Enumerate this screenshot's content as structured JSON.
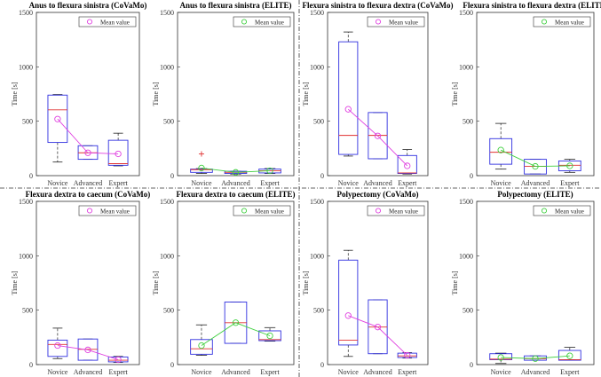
{
  "chart_data": [
    {
      "type": "box",
      "title": "Anus to flexura sinistra (CoVaMo)",
      "ylabel": "Time [s]",
      "ylim": [
        0,
        1500
      ],
      "yticks": [
        0,
        500,
        1000,
        1500
      ],
      "categories": [
        "Novice",
        "Advanced",
        "Expert"
      ],
      "legend": "Mean value",
      "mean_color": "#e040e0",
      "boxes": [
        {
          "min": 125,
          "q1": 305,
          "median": 605,
          "q3": 740,
          "max": 745,
          "mean": 520,
          "outliers": []
        },
        {
          "min": 150,
          "q1": 150,
          "median": 210,
          "q3": 275,
          "max": 275,
          "mean": 210,
          "outliers": []
        },
        {
          "min": 90,
          "q1": 95,
          "median": 110,
          "q3": 325,
          "max": 390,
          "mean": 200,
          "outliers": []
        }
      ]
    },
    {
      "type": "box",
      "title": "Anus to flexura sinistra (ELITE)",
      "ylabel": "Time [s]",
      "ylim": [
        0,
        1500
      ],
      "yticks": [
        0,
        500,
        1000,
        1500
      ],
      "categories": [
        "Novice",
        "Advanced",
        "Expert"
      ],
      "legend": "Mean value",
      "mean_color": "#40d040",
      "boxes": [
        {
          "min": 20,
          "q1": 30,
          "median": 55,
          "q3": 60,
          "max": 65,
          "mean": 70,
          "outliers": [
            200
          ]
        },
        {
          "min": 15,
          "q1": 20,
          "median": 30,
          "q3": 40,
          "max": 40,
          "mean": 30,
          "outliers": []
        },
        {
          "min": 20,
          "q1": 25,
          "median": 45,
          "q3": 60,
          "max": 65,
          "mean": 45,
          "outliers": []
        }
      ]
    },
    {
      "type": "box",
      "title": "Flexura sinistra to flexura dextra (CoVaMo)",
      "ylabel": "Time [s]",
      "ylim": [
        0,
        1500
      ],
      "yticks": [
        0,
        500,
        1000,
        1500
      ],
      "categories": [
        "Novice",
        "Advanced",
        "Expert"
      ],
      "legend": "Mean value",
      "mean_color": "#e040e0",
      "boxes": [
        {
          "min": 180,
          "q1": 195,
          "median": 370,
          "q3": 1230,
          "max": 1320,
          "mean": 610,
          "outliers": []
        },
        {
          "min": 155,
          "q1": 155,
          "median": 370,
          "q3": 580,
          "max": 580,
          "mean": 365,
          "outliers": []
        },
        {
          "min": 15,
          "q1": 20,
          "median": 25,
          "q3": 185,
          "max": 240,
          "mean": 90,
          "outliers": []
        }
      ]
    },
    {
      "type": "box",
      "title": "Flexura sinistra to flexura dextra (ELITE)",
      "ylabel": "Time [s]",
      "ylim": [
        0,
        1500
      ],
      "yticks": [
        0,
        500,
        1000,
        1500
      ],
      "categories": [
        "Novice",
        "Advanced",
        "Expert"
      ],
      "legend": "Mean value",
      "mean_color": "#40d040",
      "boxes": [
        {
          "min": 60,
          "q1": 105,
          "median": 215,
          "q3": 340,
          "max": 480,
          "mean": 235,
          "outliers": []
        },
        {
          "min": 15,
          "q1": 15,
          "median": 85,
          "q3": 150,
          "max": 150,
          "mean": 85,
          "outliers": []
        },
        {
          "min": 30,
          "q1": 45,
          "median": 95,
          "q3": 135,
          "max": 150,
          "mean": 90,
          "outliers": []
        }
      ]
    },
    {
      "type": "box",
      "title": "Flexura dextra to caecum (CoVaMo)",
      "ylabel": "Time [s]",
      "ylim": [
        0,
        1500
      ],
      "yticks": [
        0,
        500,
        1000,
        1500
      ],
      "categories": [
        "Novice",
        "Advanced",
        "Expert"
      ],
      "legend": "Mean value",
      "mean_color": "#e040e0",
      "boxes": [
        {
          "min": 55,
          "q1": 75,
          "median": 185,
          "q3": 225,
          "max": 335,
          "mean": 175,
          "outliers": []
        },
        {
          "min": 40,
          "q1": 40,
          "median": 140,
          "q3": 235,
          "max": 235,
          "mean": 135,
          "outliers": []
        },
        {
          "min": 20,
          "q1": 25,
          "median": 40,
          "q3": 70,
          "max": 75,
          "mean": 45,
          "outliers": []
        }
      ]
    },
    {
      "type": "box",
      "title": "Flexura dextra to caecum (ELITE)",
      "ylabel": "Time [s]",
      "ylim": [
        0,
        1500
      ],
      "yticks": [
        0,
        500,
        1000,
        1500
      ],
      "categories": [
        "Novice",
        "Advanced",
        "Expert"
      ],
      "legend": "Mean value",
      "mean_color": "#40d040",
      "boxes": [
        {
          "min": 85,
          "q1": 95,
          "median": 145,
          "q3": 230,
          "max": 365,
          "mean": 175,
          "outliers": []
        },
        {
          "min": 195,
          "q1": 195,
          "median": 385,
          "q3": 575,
          "max": 575,
          "mean": 385,
          "outliers": []
        },
        {
          "min": 215,
          "q1": 220,
          "median": 230,
          "q3": 310,
          "max": 340,
          "mean": 265,
          "outliers": []
        }
      ]
    },
    {
      "type": "box",
      "title": "Polypectomy (CoVaMo)",
      "ylabel": "Time [s]",
      "ylim": [
        0,
        1500
      ],
      "yticks": [
        0,
        500,
        1000,
        1500
      ],
      "categories": [
        "Novice",
        "Advanced",
        "Expert"
      ],
      "legend": "Mean value",
      "mean_color": "#e040e0",
      "boxes": [
        {
          "min": 75,
          "q1": 180,
          "median": 225,
          "q3": 960,
          "max": 1050,
          "mean": 450,
          "outliers": []
        },
        {
          "min": 100,
          "q1": 100,
          "median": 345,
          "q3": 595,
          "max": 595,
          "mean": 345,
          "outliers": []
        },
        {
          "min": 60,
          "q1": 65,
          "median": 80,
          "q3": 105,
          "max": 110,
          "mean": 85,
          "outliers": []
        }
      ]
    },
    {
      "type": "box",
      "title": "Polypectomy (ELITE)",
      "ylabel": "Time [s]",
      "ylim": [
        0,
        1500
      ],
      "yticks": [
        0,
        500,
        1000,
        1500
      ],
      "categories": [
        "Novice",
        "Advanced",
        "Expert"
      ],
      "legend": "Mean value",
      "mean_color": "#40d040",
      "boxes": [
        {
          "min": 10,
          "q1": 45,
          "median": 50,
          "q3": 100,
          "max": 105,
          "mean": 65,
          "outliers": []
        },
        {
          "min": 40,
          "q1": 40,
          "median": 55,
          "q3": 80,
          "max": 80,
          "mean": 55,
          "outliers": []
        },
        {
          "min": 40,
          "q1": 40,
          "median": 45,
          "q3": 130,
          "max": 160,
          "mean": 80,
          "outliers": []
        }
      ]
    }
  ]
}
